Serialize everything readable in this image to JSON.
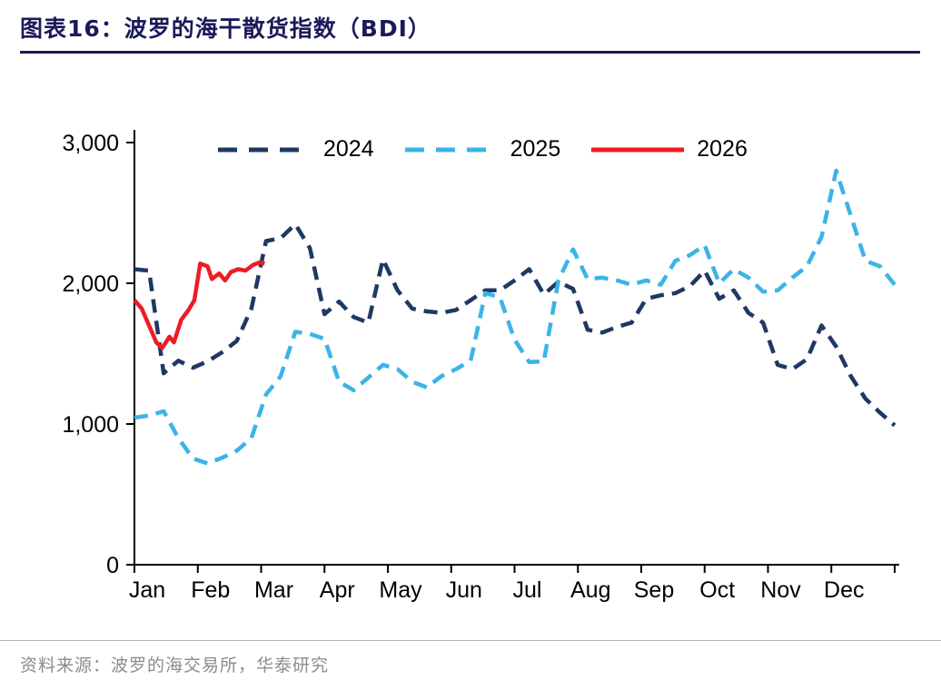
{
  "header": {
    "title": "图表16：波罗的海干散货指数（BDI）"
  },
  "footer": {
    "source": "资料来源：波罗的海交易所，华泰研究"
  },
  "colors": {
    "title": "#1A1A5A",
    "divider": "#1A1A5A",
    "source_text": "#8C8C8C",
    "axis": "#000000"
  },
  "chart_data": {
    "type": "line",
    "title": "波罗的海干散货指数（BDI）",
    "xlabel": "",
    "ylabel": "",
    "x_unit": "week_of_year",
    "x_tick_labels": [
      "Jan",
      "Feb",
      "Mar",
      "Apr",
      "May",
      "Jun",
      "Jul",
      "Aug",
      "Sep",
      "Oct",
      "Nov",
      "Dec"
    ],
    "y_ticks": [
      0,
      1000,
      2000,
      3000
    ],
    "y_tick_labels": [
      "0",
      "1,000",
      "2,000",
      "3,000"
    ],
    "ylim": [
      0,
      3000
    ],
    "xlim_weeks": [
      0,
      52
    ],
    "grid": false,
    "legend_position": "top",
    "series": [
      {
        "name": "2024",
        "color": "#1F3864",
        "style": "dashed",
        "values": [
          2100,
          2090,
          1360,
          1450,
          1400,
          1445,
          1510,
          1590,
          1820,
          2300,
          2320,
          2420,
          2250,
          1780,
          1870,
          1760,
          1720,
          2170,
          1950,
          1820,
          1800,
          1790,
          1810,
          1880,
          1950,
          1950,
          2020,
          2100,
          1920,
          2010,
          1960,
          1670,
          1650,
          1690,
          1720,
          1890,
          1915,
          1930,
          1980,
          2090,
          1890,
          1950,
          1790,
          1720,
          1420,
          1390,
          1460,
          1700,
          1550,
          1340,
          1180,
          1080,
          990
        ]
      },
      {
        "name": "2025",
        "color": "#3BB4E7",
        "style": "dashed",
        "values": [
          1045,
          1060,
          1090,
          900,
          755,
          720,
          760,
          810,
          900,
          1210,
          1340,
          1655,
          1640,
          1605,
          1300,
          1240,
          1330,
          1420,
          1390,
          1300,
          1260,
          1340,
          1390,
          1450,
          1930,
          1900,
          1600,
          1440,
          1445,
          2020,
          2240,
          2030,
          2040,
          2020,
          1990,
          2020,
          1990,
          2160,
          2200,
          2270,
          2000,
          2100,
          2040,
          1940,
          1950,
          2040,
          2120,
          2330,
          2800,
          2480,
          2160,
          2120,
          1990
        ]
      },
      {
        "name": "2026",
        "color": "#ED1C24",
        "style": "solid",
        "x_weeks": [
          0,
          0.5,
          1,
          1.5,
          1.9,
          2.4,
          2.7,
          3.2,
          3.7,
          4.1,
          4.5,
          5,
          5.3,
          5.8,
          6.2,
          6.6,
          7.1,
          7.6,
          8.1,
          8.6,
          8.9
        ],
        "values": [
          1880,
          1820,
          1700,
          1580,
          1540,
          1620,
          1580,
          1740,
          1810,
          1880,
          2140,
          2120,
          2030,
          2070,
          2020,
          2080,
          2100,
          2090,
          2130,
          2150,
          2140
        ]
      }
    ]
  }
}
